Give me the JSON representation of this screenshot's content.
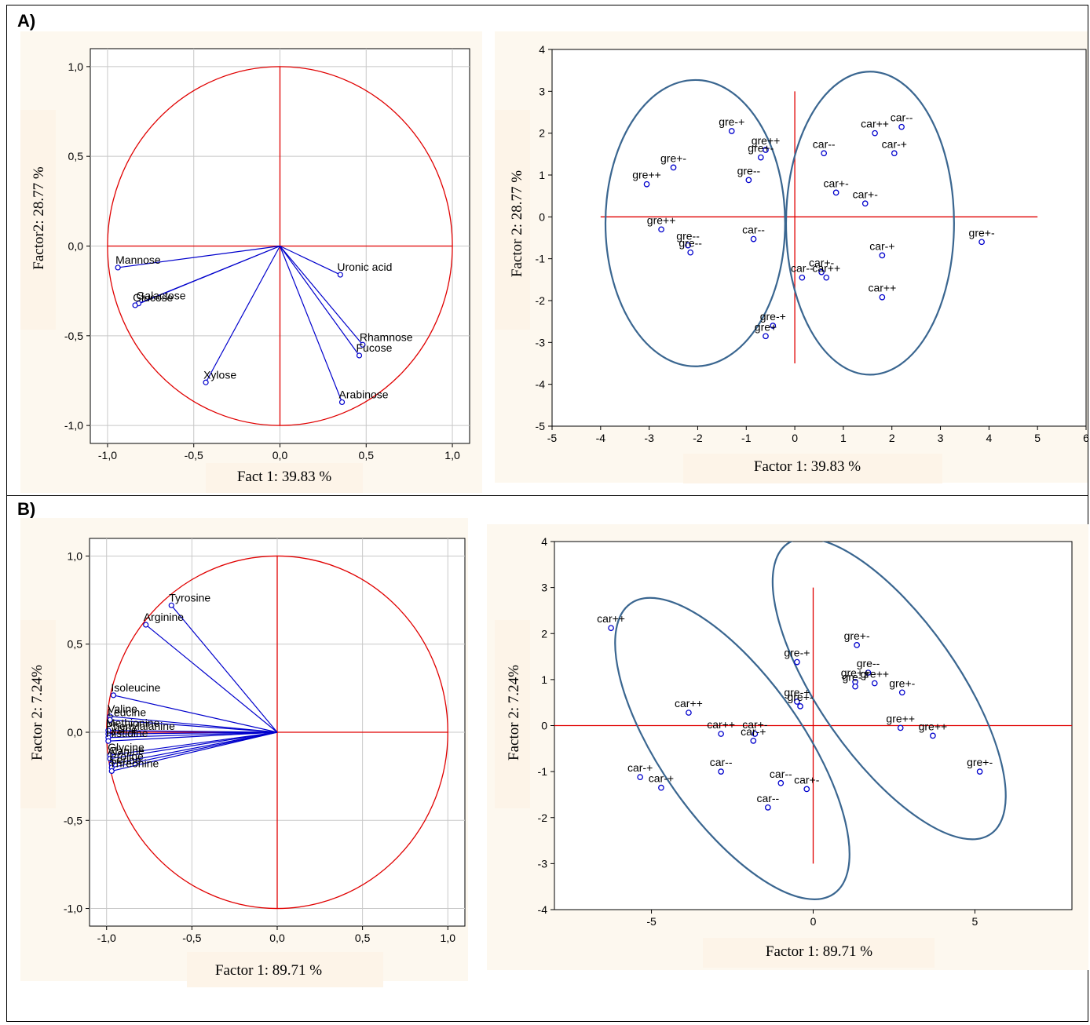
{
  "panels": [
    {
      "label": "A)"
    },
    {
      "label": "B)"
    }
  ],
  "colors": {
    "axis_red": "#e00000",
    "vector_blue": "#0000cc",
    "ellipse": "#3a6690",
    "panel_bg": "#fdf8ef",
    "grid": "#c8c8c8"
  },
  "chart_data": [
    {
      "id": "A-loadings",
      "type": "scatter",
      "subtype": "correlation-circle",
      "xlabel": "Fact 1: 39.83 %",
      "ylabel": "Factor2: 28.77 %",
      "xlim": [
        -1.1,
        1.1
      ],
      "ylim": [
        -1.1,
        1.1
      ],
      "xticks": [
        -1.0,
        -0.5,
        0.0,
        0.5,
        1.0
      ],
      "yticks": [
        -1.0,
        -0.5,
        0.0,
        0.5,
        1.0
      ],
      "xtick_labels": [
        "-1,0",
        "-0,5",
        "0,0",
        "0,5",
        "1,0"
      ],
      "ytick_labels": [
        "-1,0",
        "-0,5",
        "0,0",
        "0,5",
        "1,0"
      ],
      "grid": true,
      "points": [
        {
          "label": "Mannose",
          "x": -0.94,
          "y": -0.12
        },
        {
          "label": "Galactose",
          "x": -0.82,
          "y": -0.32
        },
        {
          "label": "Glucose",
          "x": -0.84,
          "y": -0.33
        },
        {
          "label": "Xylose",
          "x": -0.43,
          "y": -0.76
        },
        {
          "label": "Uronic acid",
          "x": 0.35,
          "y": -0.16
        },
        {
          "label": "Rhamnose",
          "x": 0.48,
          "y": -0.55
        },
        {
          "label": "Fucose",
          "x": 0.46,
          "y": -0.61
        },
        {
          "label": "Arabinose",
          "x": 0.36,
          "y": -0.87
        }
      ]
    },
    {
      "id": "A-scores",
      "type": "scatter",
      "xlabel": "Factor 1: 39.83 %",
      "ylabel": "Factor 2: 28.77 %",
      "xlim": [
        -5,
        6
      ],
      "ylim": [
        -5,
        4
      ],
      "xticks": [
        -5,
        -4,
        -3,
        -2,
        -1,
        0,
        1,
        2,
        3,
        4,
        5,
        6
      ],
      "yticks": [
        -5,
        -4,
        -3,
        -2,
        -1,
        0,
        1,
        2,
        3,
        4
      ],
      "grid": false,
      "refline_x": {
        "x": 0,
        "y": [
          -3.5,
          3
        ]
      },
      "refline_y": {
        "y": 0,
        "x": [
          -4,
          5
        ]
      },
      "ellipses": [
        {
          "cx": -2.05,
          "cy": -0.15,
          "rx": 1.85,
          "ry": 3.42
        },
        {
          "cx": 1.55,
          "cy": -0.15,
          "rx": 1.73,
          "ry": 3.62
        }
      ],
      "points": [
        {
          "label": "gre-+",
          "x": -1.3,
          "y": 2.05
        },
        {
          "label": "gre++",
          "x": -0.6,
          "y": 1.6
        },
        {
          "label": "gre+-",
          "x": -0.7,
          "y": 1.42
        },
        {
          "label": "gre--",
          "x": -0.95,
          "y": 0.88
        },
        {
          "label": "gre+-",
          "x": -2.5,
          "y": 1.18
        },
        {
          "label": "gre++",
          "x": -3.05,
          "y": 0.78
        },
        {
          "label": "gre++",
          "x": -2.75,
          "y": -0.3
        },
        {
          "label": "gre--",
          "x": -2.2,
          "y": -0.68
        },
        {
          "label": "gre--",
          "x": -2.15,
          "y": -0.85
        },
        {
          "label": "car--",
          "x": -0.85,
          "y": -0.53
        },
        {
          "label": "gre-+",
          "x": -0.45,
          "y": -2.6
        },
        {
          "label": "gre+",
          "x": -0.6,
          "y": -2.85
        },
        {
          "label": "car--",
          "x": 0.6,
          "y": 1.52
        },
        {
          "label": "car++",
          "x": 1.65,
          "y": 2.0
        },
        {
          "label": "car--",
          "x": 2.2,
          "y": 2.15
        },
        {
          "label": "car-+",
          "x": 2.05,
          "y": 1.52
        },
        {
          "label": "car+-",
          "x": 0.85,
          "y": 0.58
        },
        {
          "label": "car+-",
          "x": 1.45,
          "y": 0.32
        },
        {
          "label": "car-+",
          "x": 1.8,
          "y": -0.92
        },
        {
          "label": "car+-",
          "x": 0.55,
          "y": -1.32
        },
        {
          "label": "car--",
          "x": 0.15,
          "y": -1.45
        },
        {
          "label": "car++",
          "x": 0.65,
          "y": -1.45
        },
        {
          "label": "car++",
          "x": 1.8,
          "y": -1.92
        },
        {
          "label": "gre+-",
          "x": 3.85,
          "y": -0.6
        }
      ]
    },
    {
      "id": "B-loadings",
      "type": "scatter",
      "subtype": "correlation-circle",
      "xlabel": "Factor 1: 89.71 %",
      "ylabel": "Factor 2: 7.24%",
      "xlim": [
        -1.1,
        1.1
      ],
      "ylim": [
        -1.1,
        1.1
      ],
      "xticks": [
        -1.0,
        -0.5,
        0.0,
        0.5,
        1.0
      ],
      "yticks": [
        -1.0,
        -0.5,
        0.0,
        0.5,
        1.0
      ],
      "xtick_labels": [
        "-1,0",
        "-0,5",
        "0,0",
        "0,5",
        "1,0"
      ],
      "ytick_labels": [
        "-1,0",
        "-0,5",
        "0,0",
        "0,5",
        "1,0"
      ],
      "grid": true,
      "points": [
        {
          "label": "Tyrosine",
          "x": -0.62,
          "y": 0.72
        },
        {
          "label": "Arginine",
          "x": -0.77,
          "y": 0.61
        },
        {
          "label": "Isoleucine",
          "x": -0.96,
          "y": 0.21
        },
        {
          "label": "Valine",
          "x": -0.98,
          "y": 0.09
        },
        {
          "label": "Leucine",
          "x": -0.98,
          "y": 0.07
        },
        {
          "label": "Methionine",
          "x": -0.99,
          "y": 0.01
        },
        {
          "label": "Phenylalanine",
          "x": -0.99,
          "y": -0.01
        },
        {
          "label": "Lysine",
          "x": -0.99,
          "y": -0.03
        },
        {
          "label": "Histidine",
          "x": -0.99,
          "y": -0.05
        },
        {
          "label": "Glycine",
          "x": -0.98,
          "y": -0.13
        },
        {
          "label": "Alanine",
          "x": -0.98,
          "y": -0.15
        },
        {
          "label": "Proline",
          "x": -0.97,
          "y": -0.18
        },
        {
          "label": "Serine",
          "x": -0.97,
          "y": -0.2
        },
        {
          "label": "Threonine",
          "x": -0.97,
          "y": -0.22
        }
      ]
    },
    {
      "id": "B-scores",
      "type": "scatter",
      "xlabel": "Factor 1: 89.71 %",
      "ylabel": "Factor 2: 7.24%",
      "xlim": [
        -8,
        8
      ],
      "ylim": [
        -4,
        4
      ],
      "xticks": [
        -5,
        0,
        5
      ],
      "yticks": [
        -4,
        -3,
        -2,
        -1,
        0,
        1,
        2,
        3,
        4
      ],
      "grid": false,
      "refline_x": {
        "x": 0,
        "y": [
          -3,
          3
        ]
      },
      "refline_y": {
        "y": 0,
        "x": [
          -8,
          8
        ]
      },
      "ellipses": [
        {
          "cx": -2.5,
          "cy": -0.5,
          "rx": 2.2,
          "ry": 3.85,
          "angle": -35
        },
        {
          "cx": 2.35,
          "cy": 0.8,
          "rx": 2.15,
          "ry": 3.85,
          "angle": -35
        }
      ],
      "points": [
        {
          "label": "car++",
          "x": -6.25,
          "y": 2.12
        },
        {
          "label": "car++",
          "x": -3.85,
          "y": 0.28
        },
        {
          "label": "car++",
          "x": -2.85,
          "y": -0.18
        },
        {
          "label": "car+-",
          "x": -1.8,
          "y": -0.18
        },
        {
          "label": "car-+",
          "x": -1.85,
          "y": -0.33
        },
        {
          "label": "car--",
          "x": -2.85,
          "y": -1.0
        },
        {
          "label": "car-+",
          "x": -5.35,
          "y": -1.12
        },
        {
          "label": "car-+",
          "x": -4.7,
          "y": -1.35
        },
        {
          "label": "car--",
          "x": -1.0,
          "y": -1.25
        },
        {
          "label": "car+-",
          "x": -0.2,
          "y": -1.38
        },
        {
          "label": "car--",
          "x": -1.4,
          "y": -1.78
        },
        {
          "label": "gre-+",
          "x": -0.5,
          "y": 1.38
        },
        {
          "label": "gre+-",
          "x": 1.35,
          "y": 1.75
        },
        {
          "label": "gre--",
          "x": 1.7,
          "y": 1.15
        },
        {
          "label": "gre++",
          "x": 1.9,
          "y": 0.92
        },
        {
          "label": "gre++",
          "x": 1.3,
          "y": 0.95
        },
        {
          "label": "gre-+",
          "x": 1.3,
          "y": 0.85
        },
        {
          "label": "gre+-",
          "x": 2.75,
          "y": 0.72
        },
        {
          "label": "gre-+",
          "x": -0.5,
          "y": 0.52
        },
        {
          "label": "gre+-",
          "x": -0.4,
          "y": 0.42
        },
        {
          "label": "gre++",
          "x": 2.7,
          "y": -0.05
        },
        {
          "label": "gre++",
          "x": 3.7,
          "y": -0.22
        },
        {
          "label": "gre+-",
          "x": 5.15,
          "y": -1.0
        }
      ]
    }
  ]
}
